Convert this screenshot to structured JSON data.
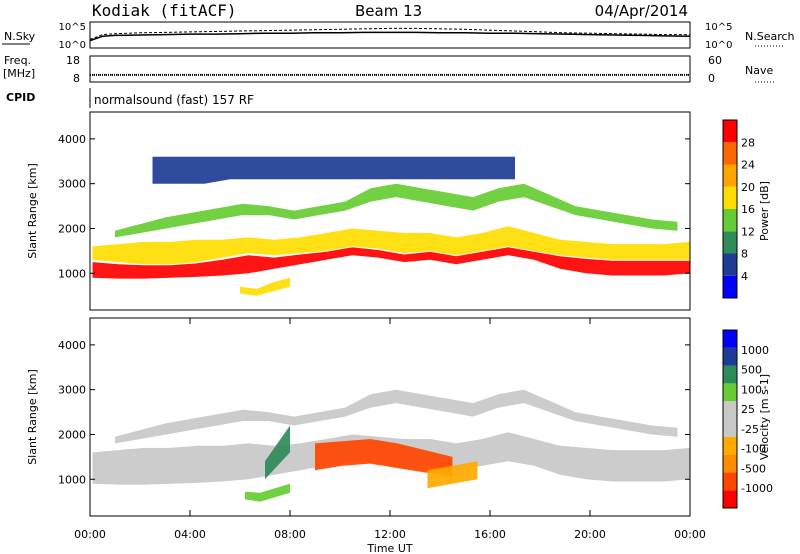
{
  "header": {
    "station": "Kodiak (fitACF)",
    "beam": "Beam 13",
    "date": "04/Apr/2014"
  },
  "left_labels": {
    "nsky": "N.Sky",
    "freq": "Freq.",
    "freq_unit": "[MHz]",
    "cpid": "CPID"
  },
  "right_labels": {
    "nsearch": "N.Search",
    "nave": "Nave"
  },
  "cpid_text": "normalsound (fast) 157 RF",
  "colors": {
    "power": [
      "#0000ff",
      "#1e3c96",
      "#2e8b57",
      "#66cc33",
      "#ffdd00",
      "#ffa500",
      "#ff6600",
      "#ff0000"
    ],
    "velocity": [
      "#ff0000",
      "#ff4500",
      "#ff8c00",
      "#ffaa00",
      "#c8c8c8",
      "#c8c8c8",
      "#66cc33",
      "#2e8b57",
      "#1e3c96",
      "#0000ff"
    ],
    "ground_scatter": "#c8c8c8"
  },
  "chart_data": [
    {
      "type": "line",
      "panel": "N.Sky / N.Search",
      "left_ticks": [
        "10^5",
        "10^0"
      ],
      "right_ticks": [
        "10^5",
        "10^0"
      ],
      "x_range": [
        0,
        24
      ],
      "series": [
        {
          "name": "N.Sky",
          "x": [
            0,
            0.5,
            1,
            2,
            3,
            4,
            5,
            6,
            7,
            8,
            9,
            10,
            11,
            12,
            13,
            14,
            15,
            16,
            17,
            18,
            19,
            20,
            21,
            22,
            23,
            24
          ],
          "y": [
            1.2,
            2.2,
            2.4,
            2.5,
            2.6,
            2.7,
            2.7,
            2.8,
            2.9,
            2.9,
            3.0,
            3.0,
            3.1,
            3.1,
            3.1,
            3.0,
            3.0,
            2.9,
            2.9,
            2.8,
            2.7,
            2.6,
            2.5,
            2.4,
            2.3,
            2.2
          ]
        },
        {
          "name": "N.Search",
          "x": [
            0,
            0.5,
            1,
            2,
            3,
            4,
            5,
            6,
            7,
            8,
            9,
            10,
            11,
            12,
            13,
            14,
            15,
            16,
            17,
            18,
            19,
            20,
            21,
            22,
            23,
            24
          ],
          "y": [
            1.5,
            2.6,
            2.8,
            3.0,
            3.1,
            3.2,
            3.3,
            3.4,
            3.5,
            3.6,
            3.7,
            3.8,
            3.9,
            4.0,
            4.0,
            3.9,
            3.8,
            3.6,
            3.4,
            3.2,
            3.0,
            2.9,
            2.8,
            2.7,
            2.6,
            2.6
          ]
        }
      ]
    },
    {
      "type": "line",
      "panel": "Freq / Nave",
      "left_ticks": [
        "18",
        "8"
      ],
      "right_ticks": [
        "60",
        "0"
      ],
      "x_range": [
        0,
        24
      ],
      "series": [
        {
          "name": "Freq.",
          "x": [
            0,
            24
          ],
          "y": [
            10.3,
            10.3
          ]
        },
        {
          "name": "Nave",
          "x": [
            0,
            24
          ],
          "y": [
            14,
            14
          ]
        }
      ]
    },
    {
      "type": "heatmap",
      "panel": "Power",
      "ylabel": "Slant Range [km]",
      "yticks": [
        1000,
        2000,
        3000,
        4000
      ],
      "ylim": [
        180,
        4600
      ],
      "x_range": [
        0,
        24
      ],
      "colorbar": {
        "label": "Power [dB]",
        "ticks": [
          "4",
          "8",
          "12",
          "16",
          "20",
          "24",
          "28"
        ]
      },
      "regions": [
        {
          "x": [
            0.1,
            24
          ],
          "r_lo": [
            1300,
            1250,
            1200,
            1200,
            1250,
            1350,
            1450,
            1400,
            1450,
            1500,
            1600,
            1550,
            1450,
            1500,
            1400,
            1500,
            1600,
            1500,
            1400,
            1350,
            1300,
            1300,
            1300,
            1300
          ],
          "r_hi": [
            1600,
            1650,
            1700,
            1700,
            1750,
            1750,
            1800,
            1750,
            1800,
            1900,
            2000,
            1950,
            1900,
            1900,
            1800,
            1900,
            2050,
            1900,
            1750,
            1700,
            1650,
            1650,
            1650,
            1700
          ],
          "level": 4
        },
        {
          "x": [
            0.1,
            24
          ],
          "r_lo": [
            900,
            880,
            880,
            900,
            920,
            950,
            1000,
            1100,
            1200,
            1300,
            1400,
            1350,
            1250,
            1300,
            1200,
            1300,
            1400,
            1300,
            1100,
            1000,
            950,
            950,
            950,
            1000
          ],
          "r_hi": [
            1250,
            1200,
            1180,
            1180,
            1220,
            1300,
            1400,
            1350,
            1420,
            1480,
            1580,
            1520,
            1420,
            1480,
            1380,
            1480,
            1580,
            1480,
            1380,
            1320,
            1280,
            1280,
            1280,
            1280
          ],
          "level": 7
        },
        {
          "x": [
            6.0,
            8.0
          ],
          "r_lo": [
            550,
            500,
            600,
            700
          ],
          "r_hi": [
            700,
            650,
            800,
            900
          ],
          "level": 4
        },
        {
          "x": [
            1.0,
            23.5
          ],
          "r_lo": [
            1800,
            1900,
            2000,
            2100,
            2200,
            2300,
            2300,
            2200,
            2300,
            2400,
            2600,
            2700,
            2600,
            2500,
            2400,
            2600,
            2700,
            2500,
            2300,
            2200,
            2100,
            2000,
            1950
          ],
          "r_hi": [
            1950,
            2100,
            2250,
            2350,
            2450,
            2550,
            2500,
            2400,
            2500,
            2600,
            2900,
            3000,
            2900,
            2800,
            2700,
            2900,
            3000,
            2750,
            2500,
            2400,
            2300,
            2200,
            2150
          ],
          "level": 3
        },
        {
          "x": [
            2.5,
            17.0
          ],
          "r_lo": [
            3000,
            3000,
            3000,
            3100,
            3100,
            3100,
            3100,
            3100,
            3100,
            3100,
            3100,
            3100,
            3100,
            3100,
            3100
          ],
          "r_hi": [
            3600,
            3600,
            3600,
            3600,
            3600,
            3600,
            3600,
            3600,
            3600,
            3600,
            3600,
            3600,
            3600,
            3600,
            3600
          ],
          "level": 1
        }
      ]
    },
    {
      "type": "heatmap",
      "panel": "Velocity",
      "ylabel": "Slant Range [km]",
      "xlabel": "Time UT",
      "yticks": [
        1000,
        2000,
        3000,
        4000
      ],
      "ylim": [
        180,
        4600
      ],
      "x_range": [
        0,
        24
      ],
      "xticks": [
        "00:00",
        "04:00",
        "08:00",
        "12:00",
        "16:00",
        "20:00",
        "00:00"
      ],
      "colorbar": {
        "label": "Velocity [m s-1]",
        "ticks": [
          "1000",
          "500",
          "100",
          "25",
          "-25",
          "-100",
          "-500",
          "-1000"
        ]
      },
      "regions": [
        {
          "x": [
            0.1,
            24
          ],
          "r_lo": [
            900,
            880,
            880,
            900,
            920,
            950,
            1000,
            1100,
            1200,
            1300,
            1400,
            1350,
            1250,
            1300,
            1200,
            1300,
            1400,
            1300,
            1100,
            1000,
            950,
            950,
            950,
            1000
          ],
          "r_hi": [
            1600,
            1650,
            1700,
            1700,
            1750,
            1750,
            1800,
            1750,
            1800,
            1900,
            2000,
            1950,
            1900,
            1900,
            1800,
            1900,
            2050,
            1900,
            1750,
            1700,
            1650,
            1650,
            1650,
            1700
          ],
          "level": 4
        },
        {
          "x": [
            9.0,
            14.5
          ],
          "r_lo": [
            1200,
            1300,
            1350,
            1250,
            1150,
            1050
          ],
          "r_hi": [
            1800,
            1850,
            1900,
            1800,
            1650,
            1500
          ],
          "level": 1
        },
        {
          "x": [
            13.5,
            15.5
          ],
          "r_lo": [
            800,
            900,
            1000
          ],
          "r_hi": [
            1200,
            1300,
            1400
          ],
          "level": 3
        },
        {
          "x": [
            6.2,
            8.0
          ],
          "r_lo": [
            550,
            500,
            600,
            700
          ],
          "r_hi": [
            720,
            700,
            800,
            900
          ],
          "level": 6
        },
        {
          "x": [
            7.0,
            8.0
          ],
          "r_lo": [
            1000,
            1300,
            1600
          ],
          "r_hi": [
            1400,
            1800,
            2200
          ],
          "level": 7
        },
        {
          "x": [
            1.0,
            23.5
          ],
          "r_lo": [
            1800,
            1900,
            2000,
            2100,
            2200,
            2300,
            2300,
            2200,
            2300,
            2400,
            2600,
            2700,
            2600,
            2500,
            2400,
            2600,
            2700,
            2500,
            2300,
            2200,
            2100,
            2000,
            1950
          ],
          "r_hi": [
            1950,
            2100,
            2250,
            2350,
            2450,
            2550,
            2500,
            2400,
            2500,
            2600,
            2900,
            3000,
            2900,
            2800,
            2700,
            2900,
            3000,
            2750,
            2500,
            2400,
            2300,
            2200,
            2150
          ],
          "level": 4
        }
      ]
    }
  ]
}
